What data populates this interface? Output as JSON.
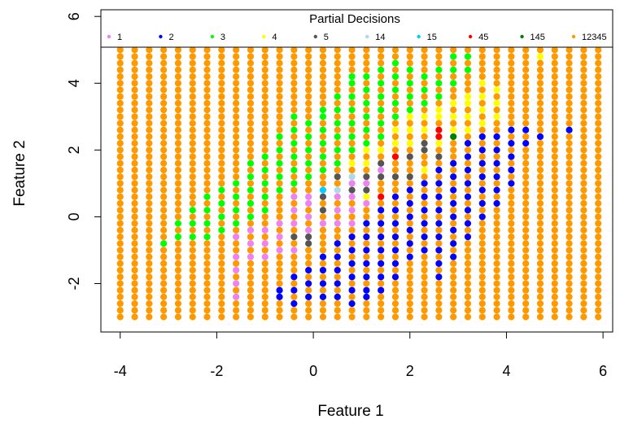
{
  "chart_data": {
    "type": "scatter",
    "xlabel": "Feature 1",
    "ylabel": "Feature 2",
    "xlim": [
      -4.4,
      6.2
    ],
    "ylim": [
      -3.45,
      6.2
    ],
    "x_ticks": [
      -4,
      -2,
      0,
      2,
      4,
      6
    ],
    "y_ticks": [
      -2,
      0,
      2,
      4,
      6
    ],
    "grid": false,
    "legend": {
      "title": "Partial Decisions",
      "placement": "top",
      "entries": [
        {
          "label": "1",
          "color": "#ee82ee"
        },
        {
          "label": "2",
          "color": "#0000ff"
        },
        {
          "label": "3",
          "color": "#00ff00"
        },
        {
          "label": "4",
          "color": "#ffff00"
        },
        {
          "label": "5",
          "color": "#555555"
        },
        {
          "label": "14",
          "color": "#add8e6"
        },
        {
          "label": "15",
          "color": "#00ccff"
        },
        {
          "label": "45",
          "color": "#ff0000"
        },
        {
          "label": "145",
          "color": "#008000"
        },
        {
          "label": "12345",
          "color": "#ff9900"
        }
      ]
    },
    "grid_points": {
      "x_start": -4.0,
      "x_step": 0.3,
      "x_count": 34,
      "y_start": -3.0,
      "y_step": 0.2,
      "y_count": 41,
      "default_label": "12345"
    },
    "series": [
      {
        "name": "1",
        "points": [
          [
            -1.6,
            -2.4
          ],
          [
            -1.6,
            -2.0
          ],
          [
            -1.6,
            -1.6
          ],
          [
            -1.6,
            -1.2
          ],
          [
            -1.6,
            -0.6
          ],
          [
            -1.3,
            -1.2
          ],
          [
            -1.3,
            -0.8
          ],
          [
            -1.3,
            -0.4
          ],
          [
            -1.0,
            -1.2
          ],
          [
            -1.0,
            -0.8
          ],
          [
            -1.0,
            -0.4
          ],
          [
            -0.7,
            -1.0
          ],
          [
            -0.7,
            -0.6
          ],
          [
            -0.7,
            -0.2
          ],
          [
            -0.4,
            -1.0
          ],
          [
            -0.4,
            -0.6
          ],
          [
            -0.4,
            -0.2
          ],
          [
            -0.4,
            0.2
          ],
          [
            -0.4,
            0.6
          ],
          [
            -0.1,
            -0.4
          ],
          [
            -0.1,
            0.0
          ],
          [
            -0.1,
            0.4
          ],
          [
            -0.1,
            0.6
          ],
          [
            0.2,
            -0.2
          ],
          [
            0.2,
            0.2
          ],
          [
            0.2,
            0.6
          ],
          [
            0.5,
            -0.2
          ],
          [
            0.5,
            0.2
          ],
          [
            0.5,
            0.6
          ],
          [
            0.8,
            -0.2
          ],
          [
            0.8,
            0.2
          ],
          [
            0.8,
            0.6
          ],
          [
            0.8,
            1.0
          ],
          [
            1.1,
            0.4
          ],
          [
            1.1,
            1.0
          ],
          [
            1.4,
            1.4
          ]
        ]
      },
      {
        "name": "2",
        "points": [
          [
            -0.7,
            -2.2
          ],
          [
            -0.7,
            -2.4
          ],
          [
            -0.4,
            -1.8
          ],
          [
            -0.4,
            -2.2
          ],
          [
            -0.4,
            -2.6
          ],
          [
            -0.1,
            -1.6
          ],
          [
            -0.1,
            -2.0
          ],
          [
            -0.1,
            -2.4
          ],
          [
            -0.1,
            -2.7
          ],
          [
            0.2,
            -1.2
          ],
          [
            0.2,
            -1.6
          ],
          [
            0.2,
            -2.0
          ],
          [
            0.2,
            -2.4
          ],
          [
            0.2,
            -2.7
          ],
          [
            0.5,
            -0.8
          ],
          [
            0.5,
            -1.2
          ],
          [
            0.5,
            -1.6
          ],
          [
            0.5,
            -2.0
          ],
          [
            0.5,
            -2.4
          ],
          [
            0.5,
            -2.7
          ],
          [
            0.8,
            -0.6
          ],
          [
            0.8,
            -1.0
          ],
          [
            0.8,
            -1.4
          ],
          [
            0.8,
            -1.8
          ],
          [
            0.8,
            -2.2
          ],
          [
            0.8,
            -2.6
          ],
          [
            1.1,
            -0.2
          ],
          [
            1.1,
            -0.6
          ],
          [
            1.1,
            -1.0
          ],
          [
            1.1,
            -1.4
          ],
          [
            1.1,
            -1.8
          ],
          [
            1.1,
            -2.2
          ],
          [
            1.1,
            -2.4
          ],
          [
            1.4,
            0.2
          ],
          [
            1.4,
            -0.2
          ],
          [
            1.4,
            -0.6
          ],
          [
            1.4,
            -1.0
          ],
          [
            1.4,
            -1.4
          ],
          [
            1.4,
            -1.8
          ],
          [
            1.4,
            -2.2
          ],
          [
            1.7,
            0.6
          ],
          [
            1.7,
            0.2
          ],
          [
            1.7,
            -0.2
          ],
          [
            1.7,
            -0.6
          ],
          [
            1.7,
            -1.0
          ],
          [
            1.7,
            -1.4
          ],
          [
            1.7,
            -1.8
          ],
          [
            2.0,
            0.8
          ],
          [
            2.0,
            0.4
          ],
          [
            2.0,
            0.0
          ],
          [
            2.0,
            -0.4
          ],
          [
            2.0,
            -0.8
          ],
          [
            2.0,
            -1.2
          ],
          [
            2.3,
            1.0
          ],
          [
            2.3,
            0.6
          ],
          [
            2.3,
            0.2
          ],
          [
            2.3,
            -0.2
          ],
          [
            2.3,
            -0.6
          ],
          [
            2.3,
            -1.0
          ],
          [
            2.6,
            1.4
          ],
          [
            2.6,
            1.0
          ],
          [
            2.6,
            0.6
          ],
          [
            2.6,
            0.2
          ],
          [
            2.6,
            -0.2
          ],
          [
            2.6,
            -0.6
          ],
          [
            2.6,
            -1.0
          ],
          [
            2.6,
            -1.4
          ],
          [
            2.6,
            -1.8
          ],
          [
            2.9,
            1.6
          ],
          [
            2.9,
            1.2
          ],
          [
            2.9,
            0.8
          ],
          [
            2.9,
            0.4
          ],
          [
            2.9,
            0.0
          ],
          [
            2.9,
            -0.4
          ],
          [
            2.9,
            -0.8
          ],
          [
            2.9,
            -1.2
          ],
          [
            3.2,
            2.2
          ],
          [
            3.2,
            1.8
          ],
          [
            3.2,
            1.4
          ],
          [
            3.2,
            1.0
          ],
          [
            3.2,
            0.6
          ],
          [
            3.2,
            0.2
          ],
          [
            3.2,
            -0.2
          ],
          [
            3.2,
            -0.6
          ],
          [
            3.5,
            2.4
          ],
          [
            3.5,
            2.0
          ],
          [
            3.5,
            1.6
          ],
          [
            3.5,
            1.2
          ],
          [
            3.5,
            0.8
          ],
          [
            3.5,
            0.4
          ],
          [
            3.5,
            0.0
          ],
          [
            3.8,
            2.4
          ],
          [
            3.8,
            2.0
          ],
          [
            3.8,
            1.6
          ],
          [
            3.8,
            1.2
          ],
          [
            3.8,
            0.8
          ],
          [
            3.8,
            0.4
          ],
          [
            4.1,
            2.6
          ],
          [
            4.1,
            2.2
          ],
          [
            4.1,
            1.8
          ],
          [
            4.1,
            1.4
          ],
          [
            4.1,
            1.0
          ],
          [
            4.4,
            2.6
          ],
          [
            4.4,
            2.2
          ],
          [
            4.7,
            2.4
          ],
          [
            5.3,
            2.6
          ]
        ]
      },
      {
        "name": "3",
        "points": [
          [
            -3.1,
            -0.8
          ],
          [
            -2.8,
            -0.6
          ],
          [
            -2.8,
            -0.2
          ],
          [
            -2.5,
            -0.6
          ],
          [
            -2.5,
            -0.2
          ],
          [
            -2.5,
            0.2
          ],
          [
            -2.2,
            -0.6
          ],
          [
            -2.2,
            -0.2
          ],
          [
            -2.2,
            0.2
          ],
          [
            -2.2,
            0.6
          ],
          [
            -1.9,
            -0.4
          ],
          [
            -1.9,
            0.0
          ],
          [
            -1.9,
            0.4
          ],
          [
            -1.9,
            0.8
          ],
          [
            -1.6,
            -0.2
          ],
          [
            -1.6,
            0.2
          ],
          [
            -1.6,
            0.6
          ],
          [
            -1.6,
            1.0
          ],
          [
            -1.3,
            0.0
          ],
          [
            -1.3,
            0.4
          ],
          [
            -1.3,
            0.8
          ],
          [
            -1.3,
            1.2
          ],
          [
            -1.3,
            1.6
          ],
          [
            -1.0,
            0.2
          ],
          [
            -1.0,
            0.6
          ],
          [
            -1.0,
            1.0
          ],
          [
            -1.0,
            1.4
          ],
          [
            -1.0,
            1.8
          ],
          [
            -0.7,
            0.8
          ],
          [
            -0.7,
            1.2
          ],
          [
            -0.7,
            1.6
          ],
          [
            -0.7,
            2.0
          ],
          [
            -0.7,
            2.4
          ],
          [
            -0.4,
            1.0
          ],
          [
            -0.4,
            1.4
          ],
          [
            -0.4,
            1.8
          ],
          [
            -0.4,
            2.2
          ],
          [
            -0.4,
            2.6
          ],
          [
            -0.4,
            3.0
          ],
          [
            -0.1,
            1.2
          ],
          [
            -0.1,
            1.6
          ],
          [
            -0.1,
            2.0
          ],
          [
            -0.1,
            2.4
          ],
          [
            -0.1,
            2.8
          ],
          [
            0.2,
            1.4
          ],
          [
            0.2,
            1.8
          ],
          [
            0.2,
            2.2
          ],
          [
            0.2,
            2.6
          ],
          [
            0.2,
            3.0
          ],
          [
            0.2,
            3.2
          ],
          [
            0.5,
            1.6
          ],
          [
            0.5,
            2.0
          ],
          [
            0.5,
            2.4
          ],
          [
            0.5,
            2.8
          ],
          [
            0.5,
            3.2
          ],
          [
            0.5,
            3.6
          ],
          [
            0.8,
            2.0
          ],
          [
            0.8,
            2.4
          ],
          [
            0.8,
            2.8
          ],
          [
            0.8,
            3.2
          ],
          [
            0.8,
            3.6
          ],
          [
            0.8,
            4.0
          ],
          [
            0.8,
            4.2
          ],
          [
            1.1,
            2.2
          ],
          [
            1.1,
            2.6
          ],
          [
            1.1,
            3.0
          ],
          [
            1.1,
            3.4
          ],
          [
            1.1,
            3.8
          ],
          [
            1.1,
            4.2
          ],
          [
            1.4,
            2.4
          ],
          [
            1.4,
            2.8
          ],
          [
            1.4,
            3.2
          ],
          [
            1.4,
            3.6
          ],
          [
            1.4,
            4.0
          ],
          [
            1.4,
            4.4
          ],
          [
            1.7,
            3.0
          ],
          [
            1.7,
            3.4
          ],
          [
            1.7,
            3.8
          ],
          [
            1.7,
            4.2
          ],
          [
            1.7,
            4.6
          ],
          [
            2.0,
            3.2
          ],
          [
            2.0,
            3.6
          ],
          [
            2.0,
            4.0
          ],
          [
            2.0,
            4.4
          ],
          [
            2.3,
            3.4
          ],
          [
            2.3,
            3.8
          ],
          [
            2.3,
            4.2
          ],
          [
            2.6,
            3.6
          ],
          [
            2.6,
            4.0
          ],
          [
            2.6,
            4.4
          ],
          [
            2.9,
            4.0
          ],
          [
            2.9,
            4.4
          ],
          [
            2.9,
            4.8
          ],
          [
            3.2,
            4.4
          ],
          [
            3.2,
            4.8
          ]
        ]
      },
      {
        "name": "4",
        "points": [
          [
            1.1,
            1.6
          ],
          [
            1.1,
            2.0
          ],
          [
            1.4,
            2.0
          ],
          [
            1.7,
            2.2
          ],
          [
            1.7,
            2.6
          ],
          [
            2.0,
            2.2
          ],
          [
            2.0,
            2.6
          ],
          [
            2.0,
            3.0
          ],
          [
            2.3,
            2.6
          ],
          [
            2.3,
            3.0
          ],
          [
            2.3,
            1.4
          ],
          [
            2.6,
            2.2
          ],
          [
            2.6,
            3.0
          ],
          [
            2.6,
            3.2
          ],
          [
            2.9,
            2.6
          ],
          [
            2.9,
            3.0
          ],
          [
            2.9,
            3.4
          ],
          [
            3.2,
            2.6
          ],
          [
            3.2,
            3.0
          ],
          [
            3.2,
            3.4
          ],
          [
            3.2,
            3.6
          ],
          [
            3.5,
            2.8
          ],
          [
            3.5,
            3.2
          ],
          [
            3.5,
            3.6
          ],
          [
            3.5,
            4.0
          ],
          [
            3.8,
            3.0
          ],
          [
            3.8,
            3.4
          ],
          [
            3.8,
            3.8
          ],
          [
            4.7,
            4.8
          ],
          [
            0.8,
            1.6
          ],
          [
            1.1,
            0.6
          ]
        ]
      },
      {
        "name": "5",
        "points": [
          [
            -0.4,
            -0.6
          ],
          [
            -0.1,
            -0.6
          ],
          [
            -0.1,
            -0.8
          ],
          [
            0.2,
            0.2
          ],
          [
            0.2,
            0.6
          ],
          [
            0.5,
            0.8
          ],
          [
            0.5,
            1.2
          ],
          [
            0.8,
            0.8
          ],
          [
            0.8,
            1.2
          ],
          [
            1.1,
            0.8
          ],
          [
            1.1,
            1.2
          ],
          [
            1.4,
            1.2
          ],
          [
            1.4,
            1.6
          ],
          [
            1.7,
            1.2
          ],
          [
            2.0,
            1.2
          ],
          [
            2.0,
            1.8
          ],
          [
            2.3,
            2.0
          ],
          [
            2.6,
            1.8
          ],
          [
            2.3,
            2.2
          ]
        ]
      },
      {
        "name": "14",
        "points": [
          [
            0.5,
            0.8
          ],
          [
            0.8,
            1.2
          ]
        ]
      },
      {
        "name": "15",
        "points": [
          [
            0.2,
            0.8
          ]
        ]
      },
      {
        "name": "45",
        "points": [
          [
            1.4,
            0.6
          ],
          [
            1.7,
            1.8
          ],
          [
            2.6,
            2.4
          ],
          [
            2.6,
            2.6
          ]
        ]
      },
      {
        "name": "145",
        "points": [
          [
            2.9,
            2.4
          ]
        ]
      }
    ]
  }
}
